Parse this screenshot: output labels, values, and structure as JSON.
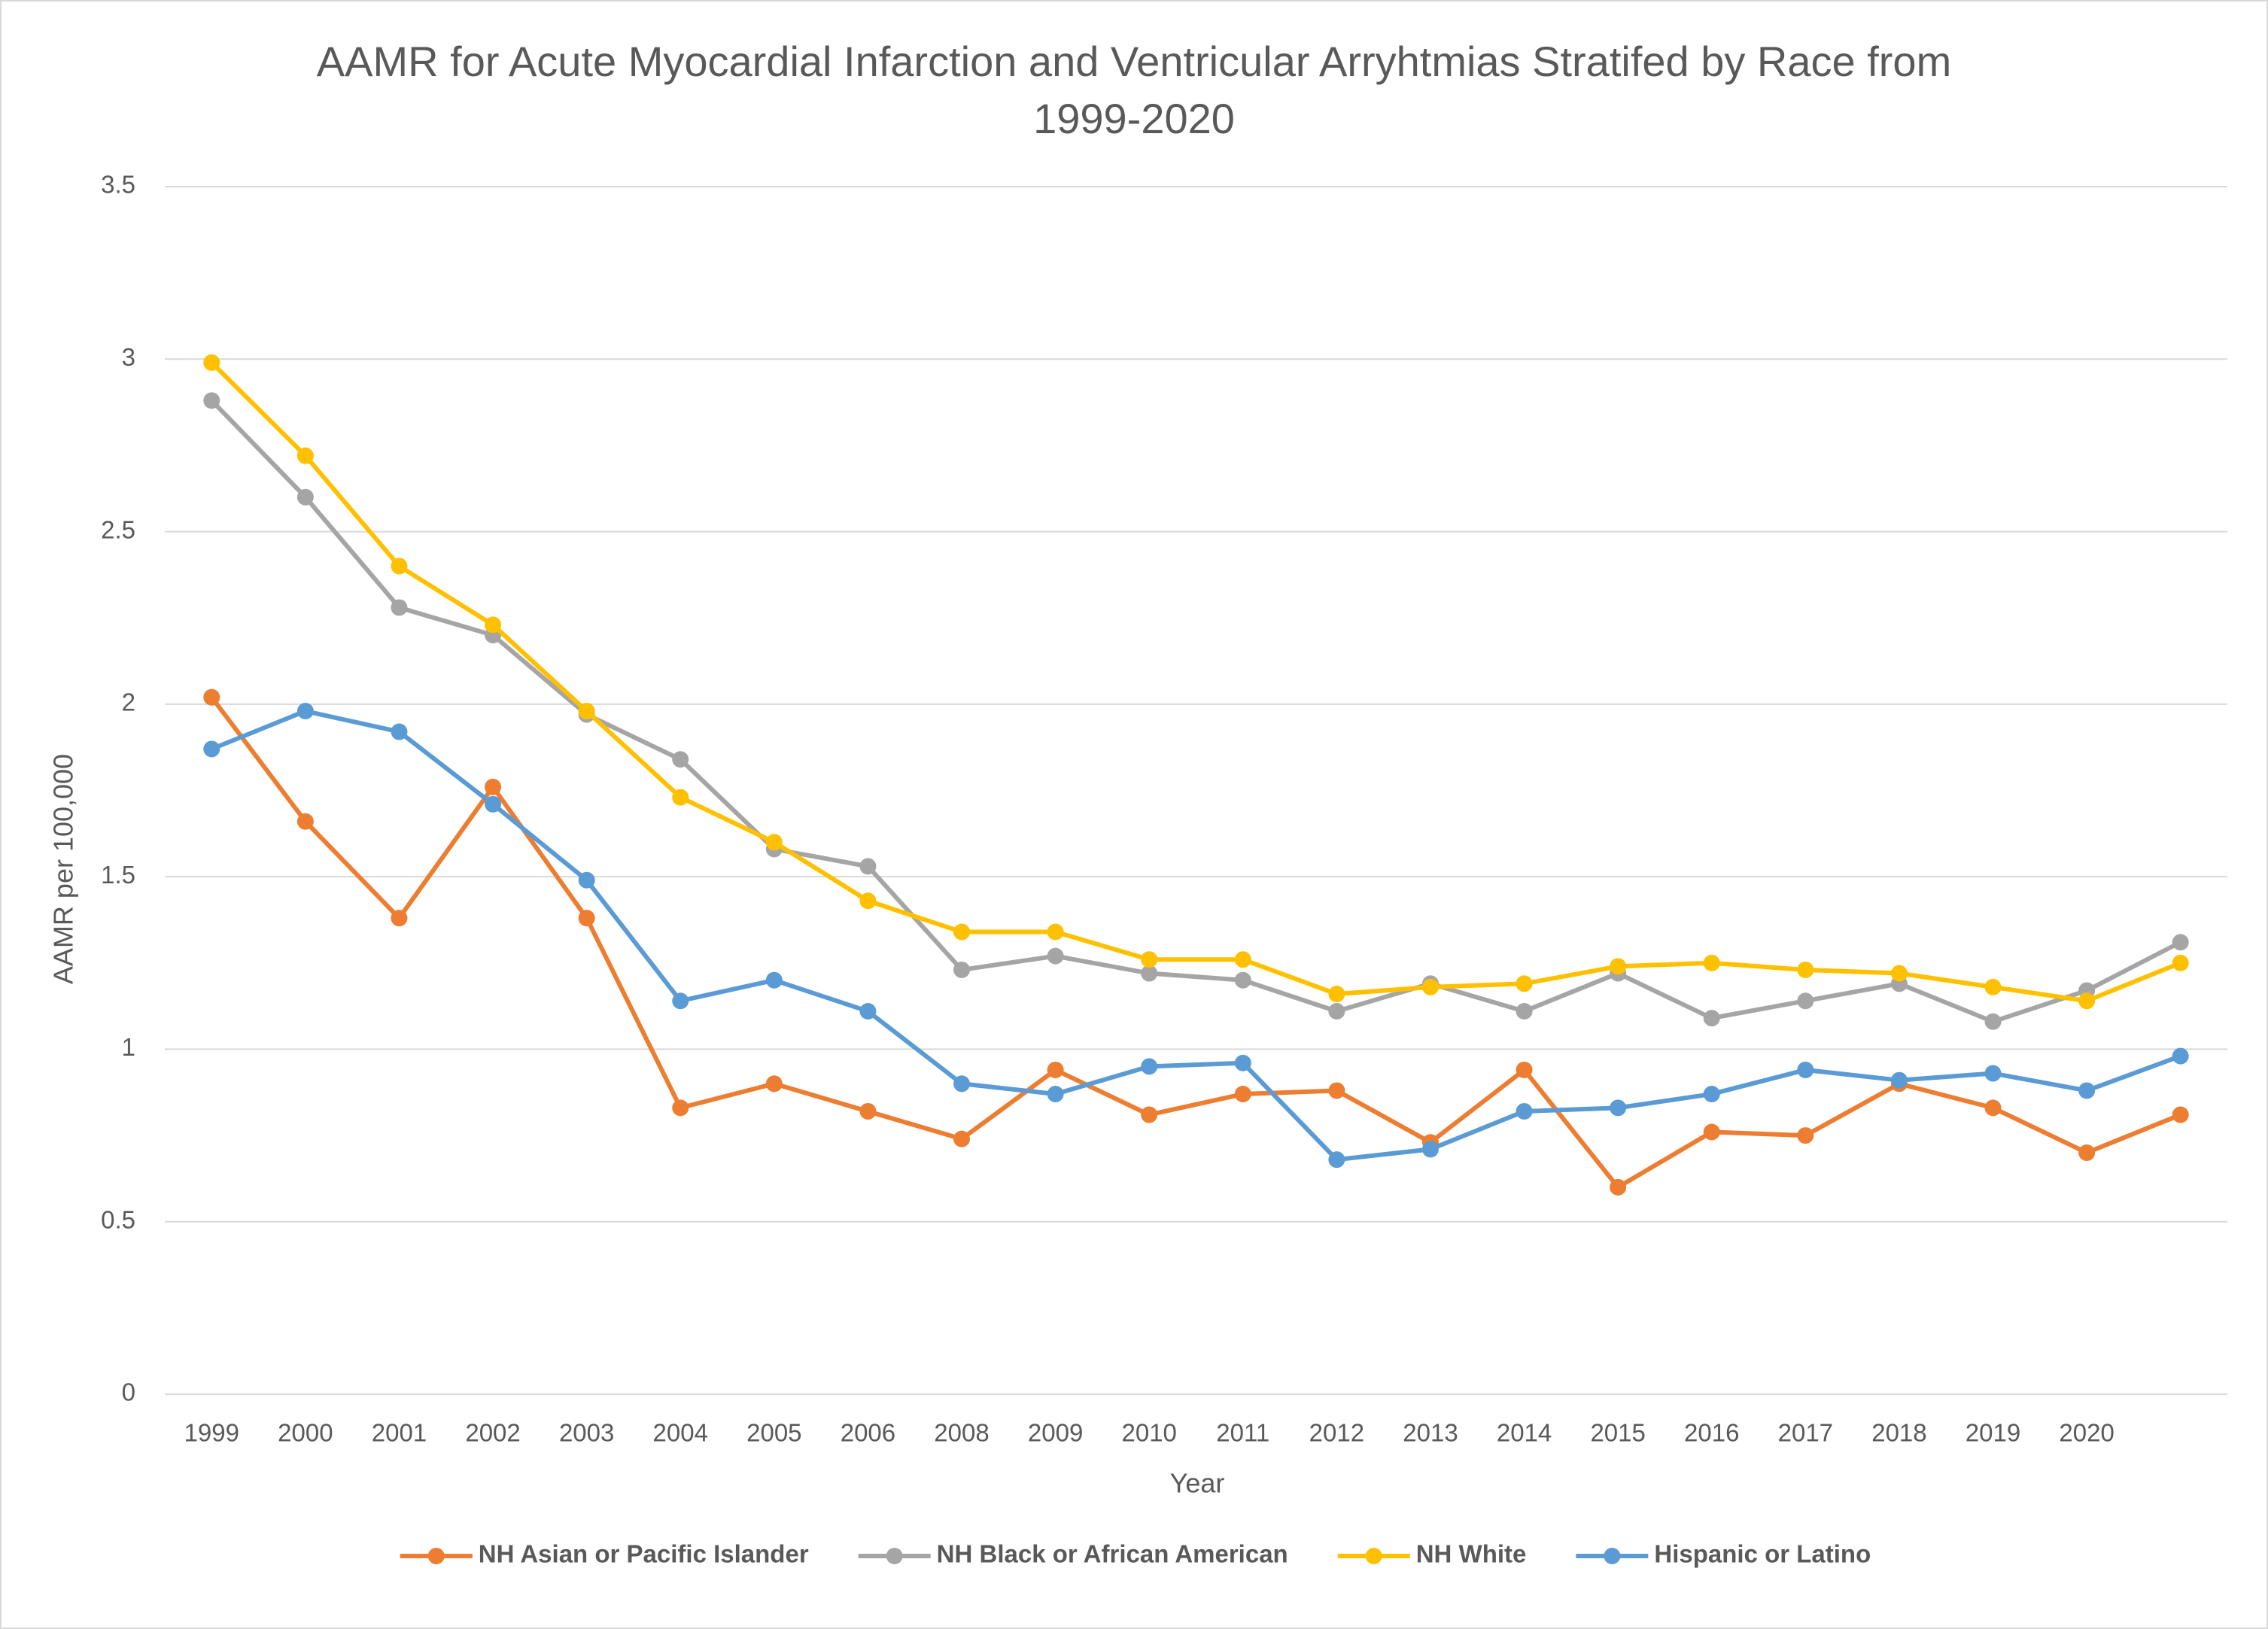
{
  "chart_data": {
    "type": "line",
    "title": "AAMR for Acute Myocardial Infarction and Ventricular Arryhtmias Stratifed by Race from 1999-2020",
    "xlabel": "Year",
    "ylabel": "AAMR per 100,000",
    "categories": [
      "1999",
      "2000",
      "2001",
      "2002",
      "2003",
      "2004",
      "2005",
      "2006",
      "2008",
      "2009",
      "2010",
      "2011",
      "2012",
      "2013",
      "2014",
      "2015",
      "2016",
      "2017",
      "2018",
      "2019",
      "2020",
      null
    ],
    "series": [
      {
        "name": "NH Asian or Pacific Islander",
        "color": "#ed7d31",
        "values": [
          2.02,
          1.66,
          1.38,
          1.76,
          1.38,
          0.83,
          0.9,
          0.82,
          0.74,
          0.94,
          0.81,
          0.87,
          0.88,
          0.73,
          0.94,
          0.6,
          0.76,
          0.75,
          0.9,
          0.83,
          0.7,
          0.81
        ]
      },
      {
        "name": "NH Black or African American",
        "color": "#a5a5a5",
        "values": [
          2.88,
          2.6,
          2.28,
          2.2,
          1.97,
          1.84,
          1.58,
          1.53,
          1.23,
          1.27,
          1.22,
          1.2,
          1.11,
          1.19,
          1.11,
          1.22,
          1.09,
          1.14,
          1.19,
          1.08,
          1.17,
          1.31
        ]
      },
      {
        "name": "NH White",
        "color": "#ffc000",
        "values": [
          2.99,
          2.72,
          2.4,
          2.23,
          1.98,
          1.73,
          1.6,
          1.43,
          1.34,
          1.34,
          1.26,
          1.26,
          1.16,
          1.18,
          1.19,
          1.24,
          1.25,
          1.23,
          1.22,
          1.18,
          1.14,
          1.25
        ]
      },
      {
        "name": "Hispanic or Latino",
        "color": "#5b9bd5",
        "values": [
          1.87,
          1.98,
          1.92,
          1.71,
          1.49,
          1.14,
          1.2,
          1.11,
          0.9,
          0.87,
          0.95,
          0.96,
          0.68,
          0.71,
          0.82,
          0.83,
          0.87,
          0.94,
          0.91,
          0.93,
          0.88,
          0.98
        ]
      }
    ],
    "ylim": [
      0,
      3.5
    ],
    "yticks": [
      0,
      0.5,
      1,
      1.5,
      2,
      2.5,
      3,
      3.5
    ],
    "grid": true,
    "legend": "bottom"
  }
}
